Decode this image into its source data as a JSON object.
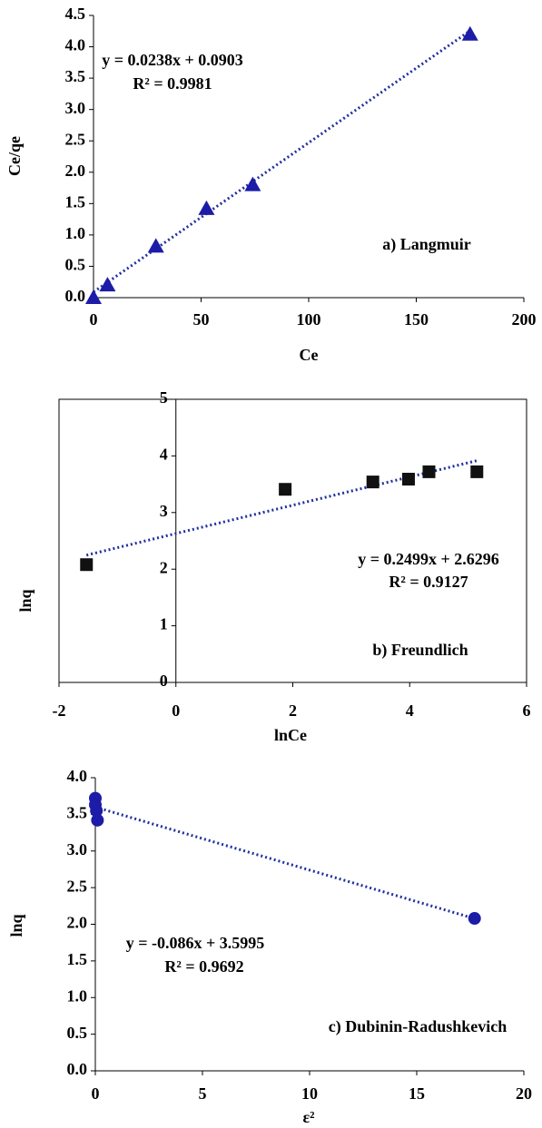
{
  "chart_data": [
    {
      "type": "scatter",
      "x_label": "Ce",
      "y_label": "Ce/qe",
      "x": [
        0,
        6.5,
        29,
        52.5,
        74,
        175
      ],
      "values": [
        0,
        0.2,
        0.82,
        1.42,
        1.8,
        4.2
      ],
      "color": "#1c1ca8",
      "marker": "triangle",
      "xlim": [
        0,
        200
      ],
      "xticks": [
        0,
        50,
        100,
        150,
        200
      ],
      "ylim": [
        0,
        4.5
      ],
      "yticks": [
        {
          "value": 0,
          "label": "0.0"
        },
        {
          "value": 0.5,
          "label": "0.5"
        },
        {
          "value": 1,
          "label": "1.0"
        },
        {
          "value": 1.5,
          "label": "1.5"
        },
        {
          "value": 2,
          "label": "2.0"
        },
        {
          "value": 2.5,
          "label": "2.5"
        },
        {
          "value": 3,
          "label": "3.0"
        },
        {
          "value": 3.5,
          "label": "3.5"
        },
        {
          "value": 4,
          "label": "4.0"
        },
        {
          "value": 4.5,
          "label": "4.5"
        }
      ],
      "trendline": {
        "equation": "y = 0.0238x + 0.0903",
        "r_squared": "R² = 0.9981",
        "slope": 0.0238,
        "intercept": 0.0903,
        "x_range": [
          0,
          175
        ],
        "color": "#1f2f9f"
      },
      "annotation": "a) Langmuir",
      "frame": false,
      "y_axis_at": 0
    },
    {
      "type": "scatter",
      "x_label": "lnCe",
      "y_label": "lnq",
      "x": [
        -1.53,
        1.87,
        3.37,
        3.98,
        4.33,
        5.15
      ],
      "values": [
        2.08,
        3.41,
        3.54,
        3.59,
        3.72,
        3.72
      ],
      "color": "#111111",
      "marker": "square",
      "xlim": [
        -2,
        6
      ],
      "xticks": [
        -2,
        0,
        2,
        4,
        6
      ],
      "ylim": [
        0,
        5
      ],
      "yticks": [
        0,
        1,
        2,
        3,
        4,
        5
      ],
      "trendline": {
        "equation": "y = 0.2499x + 2.6296",
        "r_squared": "R² = 0.9127",
        "slope": 0.2499,
        "intercept": 2.6296,
        "x_range": [
          -1.53,
          5.15
        ],
        "color": "#1f2f9f"
      },
      "annotation": "b) Freundlich",
      "frame": true,
      "y_axis_at": 0
    },
    {
      "type": "scatter",
      "x_label": "ε²",
      "y_label": "lnq",
      "x": [
        0,
        0,
        0.05,
        0.1,
        17.7
      ],
      "values": [
        3.72,
        3.63,
        3.55,
        3.42,
        2.08
      ],
      "color": "#1c1ca8",
      "marker": "circle",
      "xlim": [
        0,
        20
      ],
      "xticks": [
        0,
        5,
        10,
        15,
        20
      ],
      "ylim": [
        0,
        4
      ],
      "yticks": [
        {
          "value": 0,
          "label": "0.0"
        },
        {
          "value": 0.5,
          "label": "0.5"
        },
        {
          "value": 1,
          "label": "1.0"
        },
        {
          "value": 1.5,
          "label": "1.5"
        },
        {
          "value": 2,
          "label": "2.0"
        },
        {
          "value": 2.5,
          "label": "2.5"
        },
        {
          "value": 3,
          "label": "3.0"
        },
        {
          "value": 3.5,
          "label": "3.5"
        },
        {
          "value": 4,
          "label": "4.0"
        }
      ],
      "trendline": {
        "equation": "y = -0.086x + 3.5995",
        "r_squared": "R² = 0.9692",
        "slope": -0.086,
        "intercept": 3.5995,
        "x_range": [
          0,
          17.7
        ],
        "color": "#1f2f9f"
      },
      "annotation": "c) Dubinin-Radushkevich",
      "frame": false,
      "y_axis_at": 0
    }
  ]
}
